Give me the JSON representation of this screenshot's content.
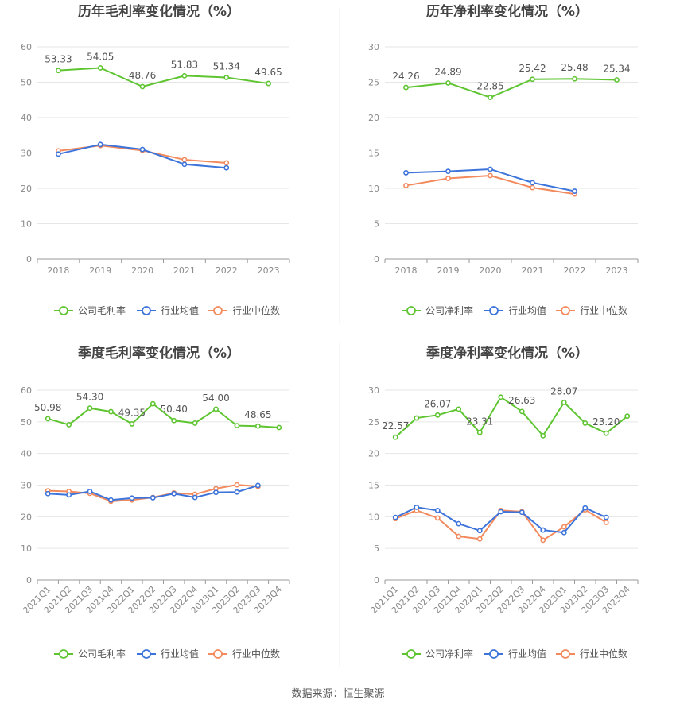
{
  "colors": {
    "company": "#5ec531",
    "industry_avg": "#3d74db",
    "industry_median": "#f38a5e",
    "grid": "#e6e6e6",
    "axis": "#8a8a8a",
    "label": "#555555",
    "title": "#444444"
  },
  "legend_labels": {
    "gross": [
      "公司毛利率",
      "行业均值",
      "行业中位数"
    ],
    "net": [
      "公司净利率",
      "行业均值",
      "行业中位数"
    ]
  },
  "source": "数据来源：恒生聚源",
  "chart_data": [
    {
      "type": "line",
      "title": "历年毛利率变化情况（%）",
      "categories": [
        "2018",
        "2019",
        "2020",
        "2021",
        "2022",
        "2023"
      ],
      "ylim": [
        0,
        60
      ],
      "yticks": [
        0,
        10,
        20,
        30,
        40,
        50,
        60
      ],
      "legend_position": "bottom",
      "series": [
        {
          "name": "公司毛利率",
          "values": [
            53.33,
            54.05,
            48.76,
            51.83,
            51.34,
            49.65
          ],
          "labels": [
            "53.33",
            "54.05",
            "48.76",
            "51.83",
            "51.34",
            "49.65"
          ]
        },
        {
          "name": "行业均值",
          "values": [
            29.7,
            32.4,
            31.0,
            26.8,
            25.8,
            null
          ]
        },
        {
          "name": "行业中位数",
          "values": [
            30.6,
            32.1,
            30.7,
            28.1,
            27.2,
            null
          ]
        }
      ]
    },
    {
      "type": "line",
      "title": "历年净利率变化情况（%）",
      "categories": [
        "2018",
        "2019",
        "2020",
        "2021",
        "2022",
        "2023"
      ],
      "ylim": [
        0,
        30
      ],
      "yticks": [
        0,
        5,
        10,
        15,
        20,
        25,
        30
      ],
      "legend_position": "bottom",
      "series": [
        {
          "name": "公司净利率",
          "values": [
            24.26,
            24.89,
            22.85,
            25.42,
            25.48,
            25.34
          ],
          "labels": [
            "24.26",
            "24.89",
            "22.85",
            "25.42",
            "25.48",
            "25.34"
          ]
        },
        {
          "name": "行业均值",
          "values": [
            12.2,
            12.4,
            12.7,
            10.8,
            9.6,
            null
          ]
        },
        {
          "name": "行业中位数",
          "values": [
            10.4,
            11.4,
            11.8,
            10.1,
            9.2,
            null
          ]
        }
      ]
    },
    {
      "type": "line",
      "title": "季度毛利率变化情况（%）",
      "categories": [
        "2021Q1",
        "2021Q2",
        "2021Q3",
        "2021Q4",
        "2022Q1",
        "2022Q2",
        "2022Q3",
        "2022Q4",
        "2023Q1",
        "2023Q2",
        "2023Q3",
        "2023Q4"
      ],
      "ylim": [
        0,
        60
      ],
      "yticks": [
        0,
        10,
        20,
        30,
        40,
        50,
        60
      ],
      "legend_position": "bottom",
      "series": [
        {
          "name": "公司毛利率",
          "values": [
            50.98,
            49.1,
            54.3,
            53.2,
            49.35,
            55.7,
            50.4,
            49.6,
            54.0,
            48.8,
            48.65,
            48.2
          ],
          "labels": [
            "50.98",
            "",
            "54.30",
            "",
            "49.35",
            "",
            "50.40",
            "",
            "54.00",
            "",
            "48.65",
            ""
          ]
        },
        {
          "name": "行业均值",
          "values": [
            27.3,
            26.9,
            28.0,
            25.3,
            25.9,
            26.0,
            27.3,
            26.1,
            27.7,
            27.8,
            29.9,
            null
          ]
        },
        {
          "name": "行业中位数",
          "values": [
            28.2,
            28.0,
            27.4,
            24.9,
            25.3,
            26.1,
            27.5,
            27.1,
            28.9,
            30.1,
            29.6,
            null
          ]
        }
      ]
    },
    {
      "type": "line",
      "title": "季度净利率变化情况（%）",
      "categories": [
        "2021Q1",
        "2021Q2",
        "2021Q3",
        "2021Q4",
        "2022Q1",
        "2022Q2",
        "2022Q3",
        "2022Q4",
        "2023Q1",
        "2023Q2",
        "2023Q3",
        "2023Q4"
      ],
      "ylim": [
        0,
        30
      ],
      "yticks": [
        0,
        5,
        10,
        15,
        20,
        25,
        30
      ],
      "legend_position": "bottom",
      "series": [
        {
          "name": "公司净利率",
          "values": [
            22.57,
            25.6,
            26.07,
            27.0,
            23.31,
            28.9,
            26.63,
            22.8,
            28.07,
            24.8,
            23.2,
            25.9
          ],
          "labels": [
            "22.57",
            "",
            "26.07",
            "",
            "23.31",
            "",
            "26.63",
            "",
            "28.07",
            "",
            "23.20",
            ""
          ]
        },
        {
          "name": "行业均值",
          "values": [
            9.9,
            11.5,
            11.0,
            8.9,
            7.8,
            10.8,
            10.7,
            7.9,
            7.5,
            11.4,
            9.9,
            null
          ]
        },
        {
          "name": "行业中位数",
          "values": [
            9.7,
            11.0,
            9.8,
            6.9,
            6.5,
            11.0,
            10.8,
            6.3,
            8.4,
            11.1,
            9.1,
            null
          ]
        }
      ]
    }
  ]
}
